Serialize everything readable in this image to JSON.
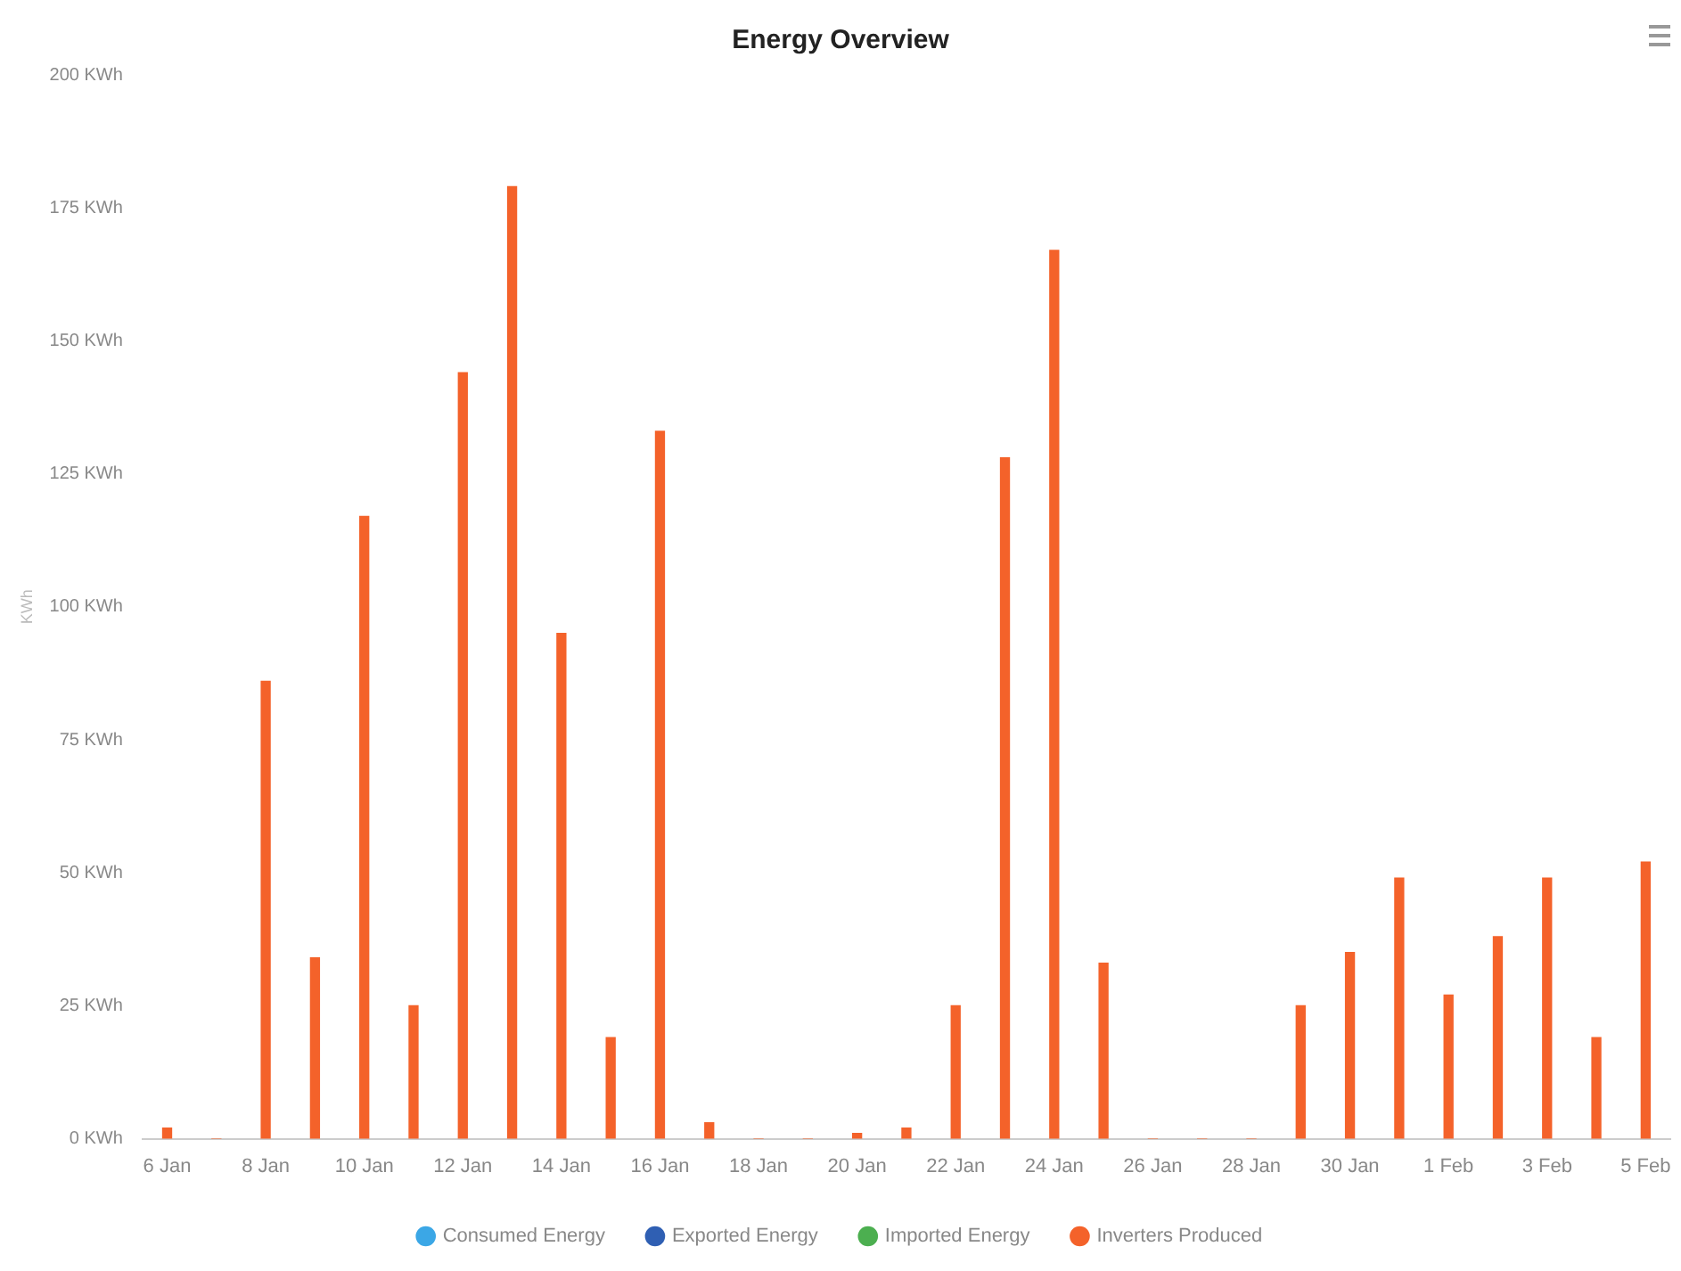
{
  "chart_data": {
    "type": "bar",
    "title": "Energy Overview",
    "ylabel": "KWh",
    "categories": [
      "6 Jan",
      null,
      "8 Jan",
      null,
      "10 Jan",
      null,
      "12 Jan",
      null,
      "14 Jan",
      null,
      "16 Jan",
      null,
      "18 Jan",
      null,
      "20 Jan",
      null,
      "22 Jan",
      null,
      "24 Jan",
      null,
      "26 Jan",
      null,
      "28 Jan",
      null,
      "30 Jan",
      null,
      "1 Feb",
      null,
      "3 Feb",
      null,
      "5 Feb"
    ],
    "series": [
      {
        "name": "Consumed Energy",
        "color": "#3ba7e6",
        "values": [
          null,
          null,
          null,
          null,
          null,
          null,
          null,
          null,
          null,
          null,
          null,
          null,
          null,
          null,
          null,
          null,
          null,
          null,
          null,
          null,
          null,
          null,
          null,
          null,
          null,
          null,
          null,
          null,
          null,
          null,
          null
        ]
      },
      {
        "name": "Exported Energy",
        "color": "#2f5fb3",
        "values": [
          null,
          null,
          null,
          null,
          null,
          null,
          null,
          null,
          null,
          null,
          null,
          null,
          null,
          null,
          null,
          null,
          null,
          null,
          null,
          null,
          null,
          null,
          null,
          null,
          null,
          null,
          null,
          null,
          null,
          null,
          null
        ]
      },
      {
        "name": "Imported Energy",
        "color": "#4caf50",
        "values": [
          null,
          null,
          null,
          null,
          null,
          null,
          null,
          null,
          null,
          null,
          null,
          null,
          null,
          null,
          null,
          null,
          null,
          null,
          null,
          null,
          null,
          null,
          null,
          null,
          null,
          null,
          null,
          null,
          null,
          null,
          null
        ]
      },
      {
        "name": "Inverters Produced",
        "color": "#f4622a",
        "values": [
          2,
          0,
          86,
          34,
          117,
          25,
          144,
          179,
          95,
          19,
          133,
          3,
          0,
          0,
          1,
          2,
          25,
          128,
          167,
          33,
          0,
          0,
          0,
          25,
          35,
          49,
          27,
          38,
          49,
          19,
          52
        ]
      }
    ],
    "ylim": [
      0,
      200
    ],
    "yticks": [
      {
        "value": 0,
        "label": "0 KWh"
      },
      {
        "value": 25,
        "label": "25 KWh"
      },
      {
        "value": 50,
        "label": "50 KWh"
      },
      {
        "value": 75,
        "label": "75 KWh"
      },
      {
        "value": 100,
        "label": "100 KWh"
      },
      {
        "value": 125,
        "label": "125 KWh"
      },
      {
        "value": 150,
        "label": "150 KWh"
      },
      {
        "value": 175,
        "label": "175 KWh"
      },
      {
        "value": 200,
        "label": "200 KWh"
      }
    ],
    "grid": false,
    "legend": "bottom"
  }
}
